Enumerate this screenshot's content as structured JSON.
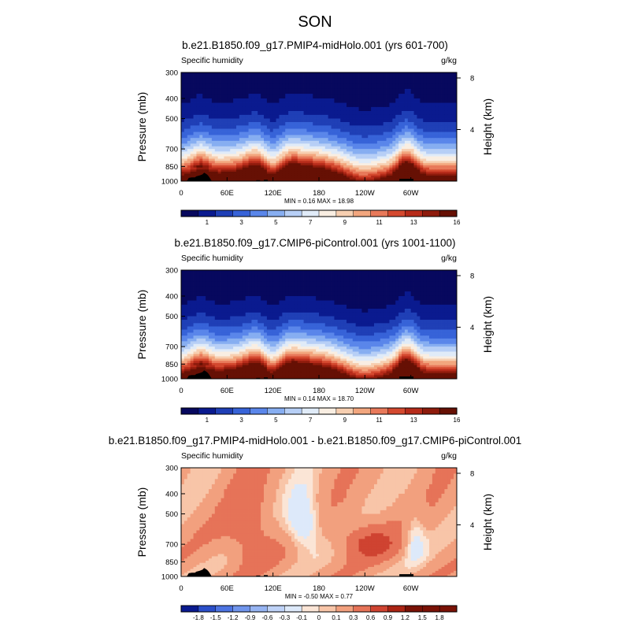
{
  "page": {
    "title": "SON"
  },
  "palettes": {
    "abs": [
      "#07085e",
      "#0a1a8f",
      "#1f3fb6",
      "#3763d8",
      "#5a86ea",
      "#87aef1",
      "#b7cff6",
      "#e0ebf8",
      "#f9eee2",
      "#f7cfb1",
      "#f2a67e",
      "#e8795a",
      "#d4492f",
      "#b62b1a",
      "#8e1b0c",
      "#661004"
    ],
    "diff": [
      "#0a1a8f",
      "#2b4fc9",
      "#4d74e2",
      "#7095ec",
      "#96b4f2",
      "#bed2f7",
      "#dde9fa",
      "#fbe5d6",
      "#f8c5a8",
      "#f2a07e",
      "#e67358",
      "#cf4331",
      "#ab2414",
      "#7a1206"
    ]
  },
  "chart_data": [
    {
      "type": "heatmap",
      "title": "b.e21.B1850.f09_g17.PMIP4-midHolo.001 (yrs 601-700)",
      "left_label": "Specific humidity",
      "right_label": "g/kg",
      "ylabel": "Pressure (mb)",
      "y2label": "Height (km)",
      "y_ticks": [
        "300",
        "400",
        "500",
        "700",
        "850",
        "1000"
      ],
      "y_tick_values": [
        300,
        400,
        500,
        700,
        850,
        1000
      ],
      "y2_ticks": [
        "8",
        "4"
      ],
      "y2_tick_values": [
        8,
        4
      ],
      "x_ticks": [
        "0",
        "60E",
        "120E",
        "180",
        "120W",
        "60W"
      ],
      "x_tick_values": [
        0,
        60,
        120,
        180,
        240,
        300
      ],
      "xlim": [
        0,
        360
      ],
      "ylim": [
        300,
        1000
      ],
      "stats": "MIN =  0.16  MAX =  18.98",
      "min": 0.16,
      "max": 18.98,
      "colorbar": {
        "levels": [
          0,
          1,
          2,
          3,
          4,
          5,
          6,
          7,
          8,
          9,
          10,
          11,
          12,
          13,
          14,
          15,
          16
        ],
        "labels": [
          "1",
          "3",
          "5",
          "7",
          "9",
          "11",
          "13",
          "16"
        ],
        "label_values": [
          1,
          3,
          5,
          7,
          9,
          11,
          13,
          16
        ],
        "palette": "abs"
      }
    },
    {
      "type": "heatmap",
      "title": "b.e21.B1850.f09_g17.CMIP6-piControl.001 (yrs 1001-1100)",
      "left_label": "Specific humidity",
      "right_label": "g/kg",
      "ylabel": "Pressure (mb)",
      "y2label": "Height (km)",
      "y_ticks": [
        "300",
        "400",
        "500",
        "700",
        "850",
        "1000"
      ],
      "y_tick_values": [
        300,
        400,
        500,
        700,
        850,
        1000
      ],
      "y2_ticks": [
        "8",
        "4"
      ],
      "y2_tick_values": [
        8,
        4
      ],
      "x_ticks": [
        "0",
        "60E",
        "120E",
        "180",
        "120W",
        "60W"
      ],
      "x_tick_values": [
        0,
        60,
        120,
        180,
        240,
        300
      ],
      "xlim": [
        0,
        360
      ],
      "ylim": [
        300,
        1000
      ],
      "stats": "MIN =  0.14  MAX =  18.70",
      "min": 0.14,
      "max": 18.7,
      "colorbar": {
        "levels": [
          0,
          1,
          2,
          3,
          4,
          5,
          6,
          7,
          8,
          9,
          10,
          11,
          12,
          13,
          14,
          15,
          16
        ],
        "labels": [
          "1",
          "3",
          "5",
          "7",
          "9",
          "11",
          "13",
          "16"
        ],
        "label_values": [
          1,
          3,
          5,
          7,
          9,
          11,
          13,
          16
        ],
        "palette": "abs"
      }
    },
    {
      "type": "heatmap",
      "title": "b.e21.B1850.f09_g17.PMIP4-midHolo.001 - b.e21.B1850.f09_g17.CMIP6-piControl.001",
      "left_label": "Specific humidity",
      "right_label": "g/kg",
      "ylabel": "Pressure (mb)",
      "y2label": "Height (km)",
      "y_ticks": [
        "300",
        "400",
        "500",
        "700",
        "850",
        "1000"
      ],
      "y_tick_values": [
        300,
        400,
        500,
        700,
        850,
        1000
      ],
      "y2_ticks": [
        "8",
        "4"
      ],
      "y2_tick_values": [
        8,
        4
      ],
      "x_ticks": [
        "0",
        "60E",
        "120E",
        "180",
        "120W",
        "60W"
      ],
      "x_tick_values": [
        0,
        60,
        120,
        180,
        240,
        300
      ],
      "xlim": [
        0,
        360
      ],
      "ylim": [
        300,
        1000
      ],
      "stats": "MIN = -0.50  MAX =  0.77",
      "min": -0.5,
      "max": 0.77,
      "colorbar": {
        "levels": [
          -2.1,
          -1.8,
          -1.5,
          -1.2,
          -0.9,
          -0.6,
          -0.3,
          -0.1,
          0,
          0.1,
          0.3,
          0.6,
          0.9,
          1.2,
          1.5,
          1.8,
          2.1
        ],
        "labels": [
          "-1.8",
          "-1.5",
          "-1.2",
          "-0.9",
          "-0.6",
          "-0.3",
          "-0.1",
          "0",
          "0.1",
          "0.3",
          "0.6",
          "0.9",
          "1.2",
          "1.5",
          "1.8"
        ],
        "label_values": [
          -1.8,
          -1.5,
          -1.2,
          -0.9,
          -0.6,
          -0.3,
          -0.1,
          0,
          0.1,
          0.3,
          0.6,
          0.9,
          1.2,
          1.5,
          1.8
        ],
        "palette": "diff"
      }
    }
  ]
}
